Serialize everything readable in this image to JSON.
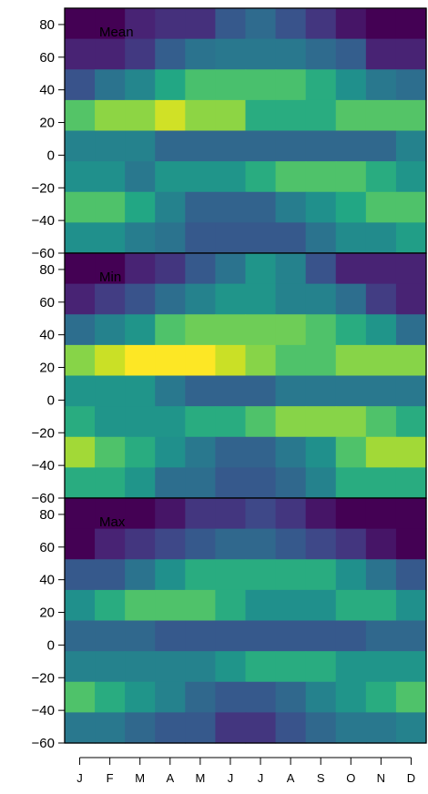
{
  "chart_data": {
    "type": "heatmap",
    "months": [
      "J",
      "F",
      "M",
      "A",
      "M",
      "J",
      "J",
      "A",
      "S",
      "O",
      "N",
      "D"
    ],
    "lat_bands": [
      80,
      60,
      40,
      20,
      0,
      -20,
      -40,
      -60
    ],
    "ylim": [
      -60,
      90
    ],
    "ytick_labels": [
      "80",
      "60",
      "40",
      "20",
      "0",
      "−20",
      "−40",
      "−60"
    ],
    "colormap": "viridis",
    "color_scale": [
      0,
      1
    ],
    "panels": [
      {
        "title": "Mean",
        "values": [
          [
            0.0,
            0.0,
            0.1,
            0.14,
            0.14,
            0.28,
            0.35,
            0.26,
            0.16,
            0.06,
            0.0,
            0.0
          ],
          [
            0.1,
            0.1,
            0.17,
            0.3,
            0.38,
            0.4,
            0.4,
            0.4,
            0.35,
            0.3,
            0.1,
            0.1
          ],
          [
            0.26,
            0.38,
            0.46,
            0.6,
            0.71,
            0.71,
            0.71,
            0.71,
            0.62,
            0.5,
            0.4,
            0.36
          ],
          [
            0.73,
            0.83,
            0.83,
            0.93,
            0.83,
            0.83,
            0.62,
            0.62,
            0.62,
            0.73,
            0.73,
            0.73
          ],
          [
            0.44,
            0.44,
            0.44,
            0.34,
            0.34,
            0.34,
            0.34,
            0.34,
            0.34,
            0.34,
            0.34,
            0.44
          ],
          [
            0.5,
            0.5,
            0.4,
            0.52,
            0.52,
            0.52,
            0.62,
            0.72,
            0.72,
            0.72,
            0.62,
            0.52
          ],
          [
            0.72,
            0.72,
            0.6,
            0.44,
            0.32,
            0.32,
            0.32,
            0.42,
            0.5,
            0.6,
            0.72,
            0.72
          ],
          [
            0.5,
            0.5,
            0.42,
            0.38,
            0.28,
            0.28,
            0.28,
            0.28,
            0.38,
            0.48,
            0.48,
            0.56
          ]
        ]
      },
      {
        "title": "Min",
        "values": [
          [
            0.0,
            0.0,
            0.1,
            0.16,
            0.28,
            0.38,
            0.52,
            0.44,
            0.26,
            0.1,
            0.1,
            0.1
          ],
          [
            0.1,
            0.18,
            0.26,
            0.36,
            0.44,
            0.52,
            0.52,
            0.44,
            0.44,
            0.36,
            0.18,
            0.1
          ],
          [
            0.36,
            0.44,
            0.52,
            0.72,
            0.78,
            0.78,
            0.78,
            0.78,
            0.72,
            0.62,
            0.52,
            0.36
          ],
          [
            0.82,
            0.92,
            1.0,
            1.0,
            1.0,
            0.92,
            0.82,
            0.72,
            0.72,
            0.82,
            0.82,
            0.82
          ],
          [
            0.52,
            0.52,
            0.52,
            0.4,
            0.32,
            0.32,
            0.32,
            0.4,
            0.4,
            0.4,
            0.4,
            0.4
          ],
          [
            0.62,
            0.52,
            0.52,
            0.52,
            0.62,
            0.62,
            0.72,
            0.82,
            0.82,
            0.82,
            0.72,
            0.62
          ],
          [
            0.86,
            0.72,
            0.62,
            0.5,
            0.4,
            0.32,
            0.32,
            0.4,
            0.5,
            0.72,
            0.86,
            0.86
          ],
          [
            0.62,
            0.62,
            0.52,
            0.36,
            0.36,
            0.28,
            0.28,
            0.34,
            0.44,
            0.62,
            0.62,
            0.62
          ]
        ]
      },
      {
        "title": "Max",
        "values": [
          [
            0.0,
            0.0,
            0.0,
            0.06,
            0.16,
            0.16,
            0.22,
            0.16,
            0.06,
            0.0,
            0.0,
            0.0
          ],
          [
            0.0,
            0.1,
            0.16,
            0.22,
            0.28,
            0.34,
            0.34,
            0.28,
            0.22,
            0.16,
            0.06,
            0.0
          ],
          [
            0.28,
            0.28,
            0.38,
            0.5,
            0.62,
            0.62,
            0.62,
            0.62,
            0.62,
            0.5,
            0.38,
            0.28
          ],
          [
            0.5,
            0.62,
            0.72,
            0.72,
            0.72,
            0.62,
            0.5,
            0.5,
            0.5,
            0.62,
            0.62,
            0.5
          ],
          [
            0.34,
            0.34,
            0.34,
            0.28,
            0.28,
            0.28,
            0.28,
            0.28,
            0.28,
            0.28,
            0.34,
            0.34
          ],
          [
            0.44,
            0.44,
            0.44,
            0.44,
            0.44,
            0.52,
            0.62,
            0.62,
            0.62,
            0.52,
            0.52,
            0.52
          ],
          [
            0.72,
            0.62,
            0.52,
            0.44,
            0.34,
            0.28,
            0.28,
            0.34,
            0.44,
            0.52,
            0.62,
            0.72
          ],
          [
            0.4,
            0.4,
            0.34,
            0.28,
            0.28,
            0.16,
            0.16,
            0.26,
            0.34,
            0.4,
            0.4,
            0.44
          ]
        ]
      }
    ]
  }
}
